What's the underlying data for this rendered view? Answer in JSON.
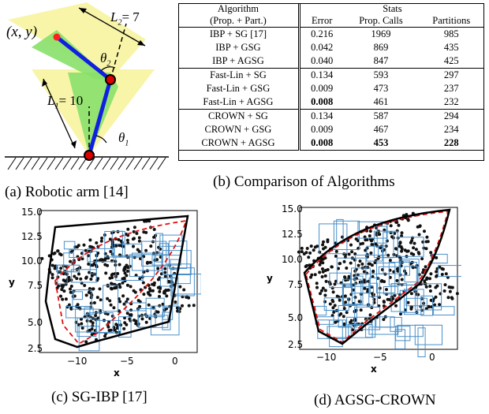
{
  "arm_panel": {
    "point_label": "(x, y)",
    "l1_label": "L",
    "l1_sub": "1",
    "l1_value": "= 10",
    "l2_label": "L",
    "l2_sub": "2",
    "l2_value": "= 7",
    "theta1_label": "θ",
    "theta1_sub": "1",
    "theta2_label": "θ",
    "theta2_sub": "2",
    "caption": "(a) Robotic arm [14]"
  },
  "table_panel": {
    "header_algorithm": "Algorithm",
    "header_algorithm_sub": "(Prop. + Part.)",
    "header_stats": "Stats",
    "columns": [
      "Error",
      "Prop. Calls",
      "Partitions"
    ],
    "groups": [
      [
        {
          "algorithm": "IBP + SG [17]",
          "error": "0.216",
          "calls": "1969",
          "partitions": "985",
          "bold": []
        },
        {
          "algorithm": "IBP + GSG",
          "error": "0.042",
          "calls": "869",
          "partitions": "435",
          "bold": []
        },
        {
          "algorithm": "IBP + AGSG",
          "error": "0.040",
          "calls": "847",
          "partitions": "425",
          "bold": []
        }
      ],
      [
        {
          "algorithm": "Fast-Lin + SG",
          "error": "0.134",
          "calls": "593",
          "partitions": "297",
          "bold": []
        },
        {
          "algorithm": "Fast-Lin + GSG",
          "error": "0.009",
          "calls": "473",
          "partitions": "237",
          "bold": []
        },
        {
          "algorithm": "Fast-Lin + AGSG",
          "error": "0.008",
          "calls": "461",
          "partitions": "232",
          "bold": [
            "error"
          ]
        }
      ],
      [
        {
          "algorithm": "CROWN + SG",
          "error": "0.134",
          "calls": "587",
          "partitions": "294",
          "bold": []
        },
        {
          "algorithm": "CROWN + GSG",
          "error": "0.009",
          "calls": "467",
          "partitions": "234",
          "bold": []
        },
        {
          "algorithm": "CROWN + AGSG",
          "error": "0.008",
          "calls": "453",
          "partitions": "228",
          "bold": [
            "error",
            "calls",
            "partitions"
          ]
        }
      ]
    ],
    "caption": "(b) Comparison of Algorithms"
  },
  "plot_c": {
    "caption": "(c) SG-IBP [17]",
    "xlabel": "x",
    "ylabel": "y",
    "xticks": [
      "−10",
      "−5",
      "0"
    ],
    "yticks": [
      "2.5",
      "5.0",
      "7.5",
      "10.0",
      "12.5",
      "15.0"
    ]
  },
  "plot_d": {
    "caption": "(d) AGSG-CROWN",
    "xlabel": "x",
    "ylabel": "y",
    "xticks": [
      "−10",
      "−5",
      "0"
    ],
    "yticks": [
      "2.5",
      "5.0",
      "7.5",
      "10.0",
      "12.5",
      "15.0"
    ]
  }
}
